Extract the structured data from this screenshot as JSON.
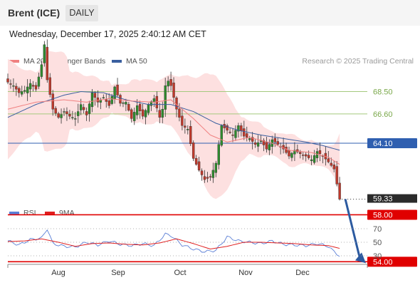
{
  "header": {
    "instrument": "Brent (ICE)",
    "timeframe": "DAILY"
  },
  "timestamp": "Wednesday, December 17, 2025 2:40:12 AM CET",
  "credit": "Research © 2025 Trading Central",
  "legend_main": [
    {
      "label": "MA 20 + Bollinger Bands",
      "color": "#f08080"
    },
    {
      "label": "MA 50",
      "color": "#3a5f9f"
    }
  ],
  "legend_rsi": [
    {
      "label": "RSI",
      "color": "#5b7fd6"
    },
    {
      "label": "9MA",
      "color": "#e02020"
    }
  ],
  "colors": {
    "up": "#2e8b2e",
    "down": "#c0392b",
    "resistance": "#a5c97e",
    "pivot": "#2f5fb0",
    "support": "#e00000",
    "bands": "#fde0e0",
    "arrow": "#2c5aa0"
  },
  "chart_data": [
    {
      "type": "candlestick",
      "x_months": [
        "Aug",
        "Sep",
        "Oct",
        "Nov",
        "Dec"
      ],
      "price_levels": [
        {
          "label": "68.50",
          "value": 68.5,
          "kind": "resistance"
        },
        {
          "label": "66.60",
          "value": 66.6,
          "kind": "resistance"
        },
        {
          "label": "64.10",
          "value": 64.1,
          "kind": "pivot"
        },
        {
          "label": "58.00",
          "value": 58.0,
          "kind": "support"
        },
        {
          "label": "54.00",
          "value": 54.0,
          "kind": "support"
        }
      ],
      "last_price": {
        "label": "59.33",
        "value": 59.33
      },
      "close_path": [
        [
          0,
          69.3
        ],
        [
          2,
          69.0
        ],
        [
          4,
          68.4
        ],
        [
          6,
          68.6
        ],
        [
          8,
          69.2
        ],
        [
          10,
          68.7
        ],
        [
          12,
          70.8
        ],
        [
          13,
          72.5
        ],
        [
          14,
          69.5
        ],
        [
          16,
          67.0
        ],
        [
          18,
          66.3
        ],
        [
          20,
          66.8
        ],
        [
          22,
          66.4
        ],
        [
          24,
          66.2
        ],
        [
          26,
          67.4
        ],
        [
          28,
          66.5
        ],
        [
          30,
          68.4
        ],
        [
          32,
          67.6
        ],
        [
          34,
          68.0
        ],
        [
          36,
          67.3
        ],
        [
          38,
          68.9
        ],
        [
          40,
          67.5
        ],
        [
          42,
          67.6
        ],
        [
          44,
          66.2
        ],
        [
          46,
          67.3
        ],
        [
          48,
          66.4
        ],
        [
          50,
          67.4
        ],
        [
          52,
          67.9
        ],
        [
          54,
          66.3
        ],
        [
          55,
          67.0
        ],
        [
          56,
          69.0
        ],
        [
          57,
          69.4
        ],
        [
          58,
          69.0
        ],
        [
          60,
          67.0
        ],
        [
          62,
          65.6
        ],
        [
          64,
          65.3
        ],
        [
          66,
          62.8
        ],
        [
          68,
          61.8
        ],
        [
          70,
          61.0
        ],
        [
          72,
          61.2
        ],
        [
          74,
          62.4
        ],
        [
          76,
          65.6
        ],
        [
          78,
          65.2
        ],
        [
          80,
          64.8
        ],
        [
          82,
          65.6
        ],
        [
          84,
          64.7
        ],
        [
          86,
          64.5
        ],
        [
          88,
          64.0
        ],
        [
          90,
          64.3
        ],
        [
          92,
          63.6
        ],
        [
          94,
          64.4
        ],
        [
          96,
          64.0
        ],
        [
          98,
          63.6
        ],
        [
          100,
          63.0
        ],
        [
          102,
          63.5
        ],
        [
          104,
          63.2
        ],
        [
          106,
          63.0
        ],
        [
          108,
          62.7
        ],
        [
          110,
          63.4
        ],
        [
          112,
          63.0
        ],
        [
          114,
          62.5
        ],
        [
          116,
          61.9
        ],
        [
          118,
          59.33
        ]
      ],
      "ma20_path": [
        [
          0,
          67.0
        ],
        [
          10,
          67.6
        ],
        [
          20,
          67.8
        ],
        [
          28,
          67.6
        ],
        [
          36,
          67.9
        ],
        [
          44,
          67.7
        ],
        [
          52,
          67.6
        ],
        [
          58,
          67.8
        ],
        [
          66,
          66.2
        ],
        [
          72,
          64.8
        ],
        [
          78,
          64.2
        ],
        [
          86,
          64.6
        ],
        [
          94,
          64.1
        ],
        [
          100,
          63.5
        ],
        [
          108,
          63.3
        ],
        [
          114,
          62.9
        ],
        [
          118,
          62.3
        ]
      ],
      "ma50_path": [
        [
          0,
          66.3
        ],
        [
          10,
          67.4
        ],
        [
          20,
          68.2
        ],
        [
          26,
          68.5
        ],
        [
          34,
          68.4
        ],
        [
          42,
          67.8
        ],
        [
          50,
          67.4
        ],
        [
          58,
          67.4
        ],
        [
          66,
          66.8
        ],
        [
          74,
          65.8
        ],
        [
          82,
          65.2
        ],
        [
          90,
          64.8
        ],
        [
          98,
          64.5
        ],
        [
          106,
          64.2
        ],
        [
          112,
          63.9
        ],
        [
          118,
          63.5
        ]
      ],
      "forecast": {
        "from": 59.33,
        "to": 54.0
      }
    },
    {
      "type": "line",
      "name": "RSI",
      "y_ticks": [
        70,
        50,
        30
      ],
      "rsi_path": [
        [
          0,
          52
        ],
        [
          4,
          46
        ],
        [
          8,
          54
        ],
        [
          12,
          56
        ],
        [
          14,
          70
        ],
        [
          16,
          48
        ],
        [
          20,
          44
        ],
        [
          24,
          43
        ],
        [
          28,
          50
        ],
        [
          32,
          46
        ],
        [
          36,
          52
        ],
        [
          40,
          47
        ],
        [
          44,
          45
        ],
        [
          48,
          48
        ],
        [
          52,
          45
        ],
        [
          56,
          62
        ],
        [
          58,
          60
        ],
        [
          62,
          46
        ],
        [
          66,
          40
        ],
        [
          70,
          36
        ],
        [
          74,
          38
        ],
        [
          78,
          58
        ],
        [
          82,
          52
        ],
        [
          86,
          50
        ],
        [
          90,
          48
        ],
        [
          94,
          52
        ],
        [
          98,
          47
        ],
        [
          102,
          46
        ],
        [
          106,
          45
        ],
        [
          110,
          48
        ],
        [
          114,
          44
        ],
        [
          116,
          36
        ],
        [
          118,
          30
        ]
      ],
      "ma9_path": [
        [
          0,
          51
        ],
        [
          6,
          52
        ],
        [
          12,
          55
        ],
        [
          18,
          50
        ],
        [
          24,
          44
        ],
        [
          30,
          48
        ],
        [
          36,
          49
        ],
        [
          42,
          47
        ],
        [
          48,
          46
        ],
        [
          54,
          49
        ],
        [
          60,
          55
        ],
        [
          66,
          48
        ],
        [
          72,
          40
        ],
        [
          78,
          44
        ],
        [
          84,
          50
        ],
        [
          90,
          50
        ],
        [
          96,
          49
        ],
        [
          102,
          48
        ],
        [
          108,
          46
        ],
        [
          114,
          45
        ],
        [
          118,
          41
        ]
      ]
    }
  ]
}
